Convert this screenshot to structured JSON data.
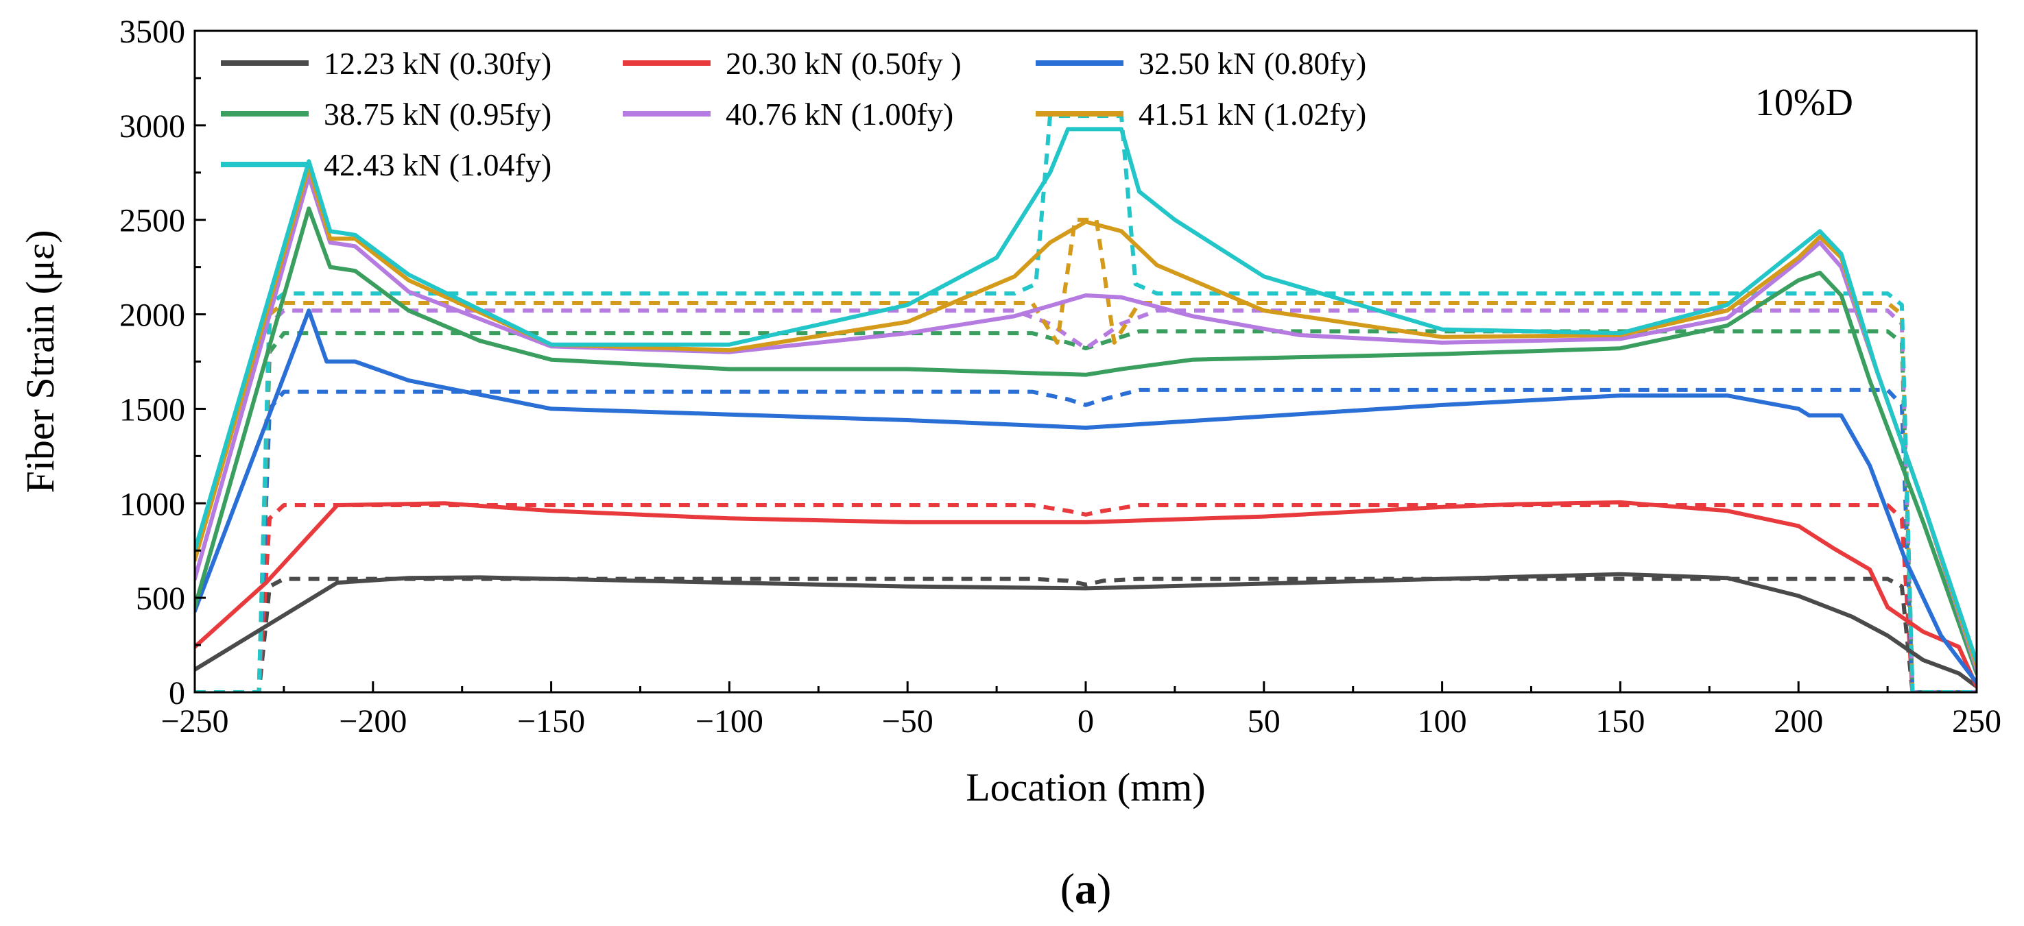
{
  "chart_data": {
    "type": "line",
    "annotation": "10%D",
    "caption": "(a)",
    "caption_letter": "a",
    "xlabel": "Location (mm)",
    "ylabel": "Fiber Strain (με)",
    "xlim": [
      -250,
      250
    ],
    "ylim": [
      0,
      3500
    ],
    "xticks": [
      -250,
      -200,
      -150,
      -100,
      -50,
      0,
      50,
      100,
      150,
      200,
      250
    ],
    "xtick_labels": [
      "−250",
      "−200",
      "−150",
      "−100",
      "−50",
      "0",
      "50",
      "100",
      "150",
      "200",
      "250"
    ],
    "yticks": [
      0,
      500,
      1000,
      1500,
      2000,
      2500,
      3000,
      3500
    ],
    "ytick_labels": [
      "0",
      "500",
      "1000",
      "1500",
      "2000",
      "2500",
      "3000",
      "3500"
    ],
    "grid": false,
    "legend_position": "top-left",
    "series": [
      {
        "name": "12.23 kN (0.30fy)",
        "color": "#4a4a4a",
        "measured": [
          [
            -250,
            120
          ],
          [
            -230,
            350
          ],
          [
            -210,
            580
          ],
          [
            -190,
            605
          ],
          [
            -170,
            608
          ],
          [
            -150,
            600
          ],
          [
            -100,
            580
          ],
          [
            -50,
            560
          ],
          [
            0,
            550
          ],
          [
            50,
            575
          ],
          [
            100,
            600
          ],
          [
            120,
            610
          ],
          [
            150,
            625
          ],
          [
            180,
            605
          ],
          [
            200,
            510
          ],
          [
            215,
            400
          ],
          [
            225,
            300
          ],
          [
            235,
            170
          ],
          [
            245,
            100
          ],
          [
            250,
            30
          ]
        ],
        "model": [
          [
            -250,
            0
          ],
          [
            -232,
            0
          ],
          [
            -229,
            560
          ],
          [
            -225,
            600
          ],
          [
            -15,
            600
          ],
          [
            -5,
            590
          ],
          [
            0,
            570
          ],
          [
            5,
            590
          ],
          [
            15,
            600
          ],
          [
            225,
            600
          ],
          [
            229,
            560
          ],
          [
            232,
            0
          ],
          [
            250,
            0
          ]
        ]
      },
      {
        "name": "20.30 kN (0.50fy )",
        "color": "#e8393c",
        "measured": [
          [
            -250,
            240
          ],
          [
            -230,
            580
          ],
          [
            -210,
            990
          ],
          [
            -180,
            1000
          ],
          [
            -150,
            960
          ],
          [
            -100,
            920
          ],
          [
            -50,
            900
          ],
          [
            0,
            900
          ],
          [
            50,
            930
          ],
          [
            100,
            980
          ],
          [
            120,
            995
          ],
          [
            150,
            1005
          ],
          [
            180,
            960
          ],
          [
            200,
            880
          ],
          [
            210,
            760
          ],
          [
            220,
            650
          ],
          [
            225,
            450
          ],
          [
            235,
            320
          ],
          [
            245,
            240
          ],
          [
            250,
            30
          ]
        ],
        "model": [
          [
            -250,
            0
          ],
          [
            -232,
            0
          ],
          [
            -229,
            920
          ],
          [
            -225,
            990
          ],
          [
            -15,
            990
          ],
          [
            -5,
            960
          ],
          [
            0,
            940
          ],
          [
            5,
            960
          ],
          [
            15,
            990
          ],
          [
            225,
            990
          ],
          [
            229,
            920
          ],
          [
            232,
            0
          ],
          [
            250,
            0
          ]
        ]
      },
      {
        "name": "32.50 kN (0.80fy)",
        "color": "#2a6fd6",
        "measured": [
          [
            -250,
            430
          ],
          [
            -218,
            2020
          ],
          [
            -213,
            1750
          ],
          [
            -205,
            1750
          ],
          [
            -190,
            1650
          ],
          [
            -150,
            1500
          ],
          [
            -100,
            1470
          ],
          [
            -50,
            1440
          ],
          [
            0,
            1400
          ],
          [
            50,
            1460
          ],
          [
            100,
            1520
          ],
          [
            150,
            1570
          ],
          [
            180,
            1570
          ],
          [
            200,
            1500
          ],
          [
            203,
            1465
          ],
          [
            212,
            1465
          ],
          [
            220,
            1200
          ],
          [
            230,
            700
          ],
          [
            240,
            300
          ],
          [
            250,
            50
          ]
        ],
        "model": [
          [
            -250,
            0
          ],
          [
            -232,
            0
          ],
          [
            -229,
            1500
          ],
          [
            -225,
            1590
          ],
          [
            -15,
            1590
          ],
          [
            -5,
            1550
          ],
          [
            0,
            1520
          ],
          [
            5,
            1550
          ],
          [
            15,
            1600
          ],
          [
            225,
            1600
          ],
          [
            229,
            1520
          ],
          [
            232,
            0
          ],
          [
            250,
            0
          ]
        ]
      },
      {
        "name": "38.75 kN (0.95fy)",
        "color": "#3a9e5e",
        "measured": [
          [
            -250,
            450
          ],
          [
            -218,
            2560
          ],
          [
            -212,
            2250
          ],
          [
            -205,
            2230
          ],
          [
            -190,
            2020
          ],
          [
            -170,
            1860
          ],
          [
            -150,
            1760
          ],
          [
            -100,
            1710
          ],
          [
            -50,
            1710
          ],
          [
            0,
            1680
          ],
          [
            10,
            1710
          ],
          [
            30,
            1760
          ],
          [
            100,
            1790
          ],
          [
            150,
            1820
          ],
          [
            180,
            1940
          ],
          [
            200,
            2180
          ],
          [
            206,
            2220
          ],
          [
            212,
            2100
          ],
          [
            220,
            1650
          ],
          [
            235,
            900
          ],
          [
            250,
            100
          ]
        ],
        "model": [
          [
            -250,
            0
          ],
          [
            -232,
            0
          ],
          [
            -229,
            1800
          ],
          [
            -225,
            1900
          ],
          [
            -15,
            1900
          ],
          [
            -5,
            1850
          ],
          [
            0,
            1820
          ],
          [
            5,
            1850
          ],
          [
            15,
            1910
          ],
          [
            225,
            1910
          ],
          [
            229,
            1850
          ],
          [
            232,
            0
          ],
          [
            250,
            0
          ]
        ]
      },
      {
        "name": "40.76 kN (1.00fy)",
        "color": "#b57be0",
        "measured": [
          [
            -250,
            600
          ],
          [
            -218,
            2730
          ],
          [
            -212,
            2380
          ],
          [
            -205,
            2360
          ],
          [
            -190,
            2120
          ],
          [
            -150,
            1830
          ],
          [
            -100,
            1800
          ],
          [
            -50,
            1900
          ],
          [
            -20,
            1990
          ],
          [
            0,
            2100
          ],
          [
            10,
            2090
          ],
          [
            30,
            1990
          ],
          [
            60,
            1890
          ],
          [
            100,
            1850
          ],
          [
            150,
            1870
          ],
          [
            180,
            1980
          ],
          [
            200,
            2280
          ],
          [
            206,
            2380
          ],
          [
            212,
            2250
          ],
          [
            222,
            1700
          ],
          [
            235,
            1000
          ],
          [
            250,
            120
          ]
        ],
        "model": [
          [
            -250,
            0
          ],
          [
            -232,
            0
          ],
          [
            -229,
            1950
          ],
          [
            -225,
            2020
          ],
          [
            -20,
            2020
          ],
          [
            -10,
            1950
          ],
          [
            0,
            1820
          ],
          [
            10,
            1950
          ],
          [
            20,
            2020
          ],
          [
            225,
            2020
          ],
          [
            229,
            1950
          ],
          [
            232,
            0
          ],
          [
            250,
            0
          ]
        ]
      },
      {
        "name": "41.51 kN (1.02fy)",
        "color": "#d49a1a",
        "measured": [
          [
            -250,
            700
          ],
          [
            -218,
            2780
          ],
          [
            -212,
            2400
          ],
          [
            -205,
            2400
          ],
          [
            -190,
            2180
          ],
          [
            -150,
            1840
          ],
          [
            -100,
            1810
          ],
          [
            -50,
            1960
          ],
          [
            -20,
            2200
          ],
          [
            -10,
            2380
          ],
          [
            0,
            2490
          ],
          [
            10,
            2440
          ],
          [
            20,
            2260
          ],
          [
            50,
            2020
          ],
          [
            100,
            1880
          ],
          [
            150,
            1890
          ],
          [
            180,
            2020
          ],
          [
            200,
            2300
          ],
          [
            206,
            2410
          ],
          [
            212,
            2300
          ],
          [
            222,
            1700
          ],
          [
            235,
            1000
          ],
          [
            250,
            140
          ]
        ],
        "model": [
          [
            -250,
            0
          ],
          [
            -232,
            0
          ],
          [
            -229,
            2000
          ],
          [
            -225,
            2060
          ],
          [
            -15,
            2060
          ],
          [
            -8,
            1850
          ],
          [
            -3,
            2500
          ],
          [
            3,
            2500
          ],
          [
            8,
            1850
          ],
          [
            15,
            2060
          ],
          [
            225,
            2060
          ],
          [
            229,
            2000
          ],
          [
            232,
            0
          ],
          [
            250,
            0
          ]
        ]
      },
      {
        "name": "42.43 kN (1.04fy)",
        "color": "#22c5c8",
        "measured": [
          [
            -250,
            750
          ],
          [
            -218,
            2810
          ],
          [
            -212,
            2440
          ],
          [
            -205,
            2420
          ],
          [
            -190,
            2210
          ],
          [
            -150,
            1840
          ],
          [
            -100,
            1840
          ],
          [
            -50,
            2050
          ],
          [
            -25,
            2300
          ],
          [
            -10,
            2750
          ],
          [
            -5,
            2980
          ],
          [
            10,
            2980
          ],
          [
            15,
            2650
          ],
          [
            25,
            2500
          ],
          [
            50,
            2200
          ],
          [
            100,
            1920
          ],
          [
            150,
            1900
          ],
          [
            180,
            2050
          ],
          [
            200,
            2350
          ],
          [
            206,
            2440
          ],
          [
            212,
            2320
          ],
          [
            222,
            1700
          ],
          [
            235,
            1000
          ],
          [
            250,
            160
          ]
        ],
        "model": [
          [
            -250,
            0
          ],
          [
            -232,
            0
          ],
          [
            -229,
            2050
          ],
          [
            -225,
            2110
          ],
          [
            -20,
            2110
          ],
          [
            -14,
            2160
          ],
          [
            -10,
            3050
          ],
          [
            10,
            3050
          ],
          [
            14,
            2160
          ],
          [
            20,
            2110
          ],
          [
            225,
            2110
          ],
          [
            229,
            2050
          ],
          [
            232,
            0
          ],
          [
            250,
            0
          ]
        ]
      }
    ]
  }
}
